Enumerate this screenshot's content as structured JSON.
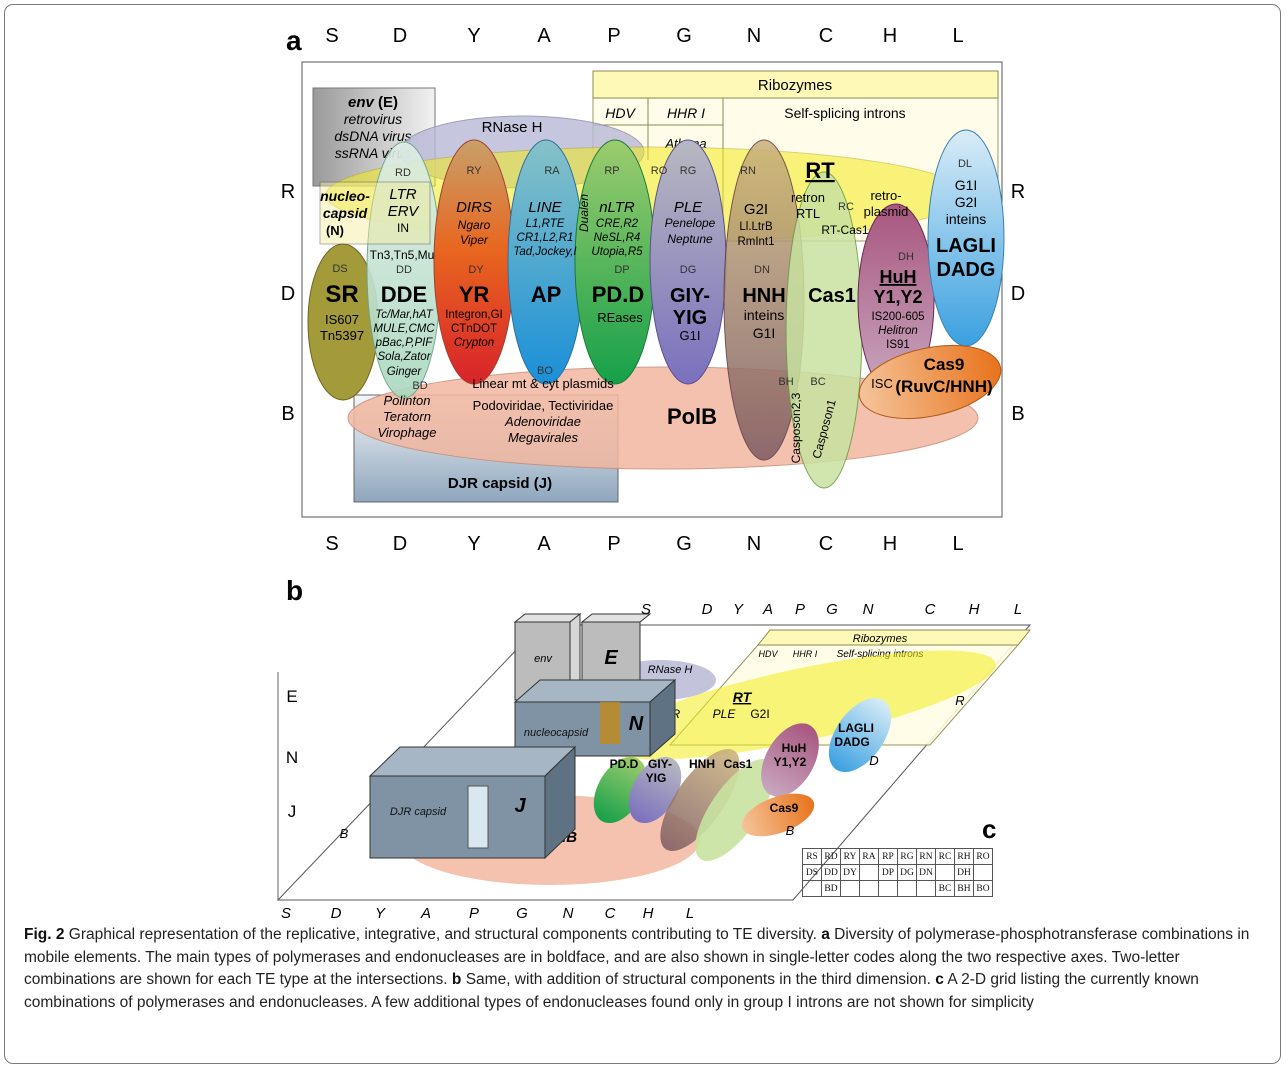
{
  "panel_a": {
    "label": "a",
    "col_letters": [
      "S",
      "D",
      "Y",
      "A",
      "P",
      "G",
      "N",
      "C",
      "H",
      "L"
    ],
    "row_letters": [
      "R",
      "D",
      "B"
    ],
    "ribozymes": "Ribozymes",
    "hdv": "HDV",
    "hhr": "HHR I",
    "self_splicing": "Self-splicing introns",
    "athena": "Athena",
    "env_title": "env",
    "env_code": " (E)",
    "env_l1": "retrovirus",
    "env_l2": "dsDNA virus",
    "env_l3": "ssRNA virus",
    "rnaseh": "RNase H",
    "nucleo_l1": "nucleo-",
    "nucleo_l2": "capsid",
    "nucleo_code": "(N)",
    "rt": "RT",
    "retron": "retron",
    "rtl": "RTL",
    "retroplasmid_1": "retro-",
    "retroplasmid_2": "plasmid",
    "rt_cas1": "RT-Cas1",
    "codes": {
      "RD": "RD",
      "RY": "RY",
      "RA": "RA",
      "RP": "RP",
      "RO": "RO",
      "RG": "RG",
      "RN": "RN",
      "RC": "RC",
      "DL": "DL",
      "DS": "DS",
      "DD": "DD",
      "DY": "DY",
      "DP": "DP",
      "DG": "DG",
      "DN": "DN",
      "DH": "DH",
      "BO": "BO",
      "BD": "BD",
      "BH": "BH",
      "BC": "BC"
    },
    "ltr": "LTR",
    "erv": "ERV",
    "in": "IN",
    "dirs": "DIRS",
    "ngaro": "Ngaro",
    "viper": "Viper",
    "line": "LINE",
    "line_1": "L1,RTE",
    "line_2": "CR1,L2,R1",
    "line_3": "Tad,Jockey,I",
    "dualen": "Dualen",
    "nltr": "nLTR",
    "nltr_1": "CRE,R2",
    "nltr_2": "NeSL,R4",
    "nltr_3": "Utopia,R5",
    "ple": "PLE",
    "penelope": "Penelope",
    "neptune": "Neptune",
    "g2i": "G2I",
    "g2i_1": "Ll.LtrB",
    "g2i_2": "RmInt1",
    "g1i_l": "G1I",
    "g2i_l": "G2I",
    "inteins_l": "inteins",
    "lagli": "LAGLI",
    "dadg": "DADG",
    "sr": "SR",
    "sr_1": "IS607",
    "sr_2": "Tn5397",
    "tn": "Tn3,Tn5,Mu",
    "dde": "DDE",
    "dde_1": "Tc/Mar,hAT",
    "dde_2": "MULE,CMC",
    "dde_3": "pBac,P,PIF",
    "dde_4": "Sola,Zator",
    "dde_5": "Ginger",
    "yr": "YR",
    "yr_1": "Integron,GI",
    "yr_2": "CTnDOT",
    "yr_3": "Crypton",
    "ap": "AP",
    "pdd": "PD.D",
    "reases": "REases",
    "giy": "GIY-",
    "yig": "YIG",
    "g1i_g": "G1I",
    "hnh": "HNH",
    "hnh_inteins": "inteins",
    "hnh_g1i": "G1I",
    "cas1": "Cas1",
    "huh": "HuH",
    "y1y2": "Y1,Y2",
    "huh_1": "IS200-605",
    "huh_2": "Helitron",
    "huh_3": "IS91",
    "cas9": "Cas9",
    "ruvc": "(RuvC/HNH)",
    "isc": "ISC",
    "casposon23": "Casposon2,3",
    "casposon1": "Casposon1",
    "linear": "Linear mt & cyt plasmids",
    "podo": "Podoviridae, Tectiviridae",
    "adeno": "Adenoviridae",
    "megavirales": "Megavirales",
    "polinton": "Polinton",
    "teratorn": "Teratorn",
    "virophage": "Virophage",
    "polb": "PolB",
    "djr": "DJR capsid (J)"
  },
  "panel_b": {
    "label": "b",
    "col_letters": [
      "S",
      "D",
      "Y",
      "A",
      "P",
      "G",
      "N",
      "C",
      "H",
      "L"
    ],
    "z_letters": [
      "E",
      "N",
      "J"
    ],
    "env": "env",
    "e": "E",
    "nucleocapsid": "nucleocapsid",
    "n": "N",
    "djr": "DJR capsid",
    "j": "J",
    "ribozymes": "Ribozymes",
    "hdv": "HDV",
    "hhr": "HHR I",
    "self": "Self-splicing introns",
    "rnaseh": "RNase H",
    "rt": "RT",
    "ple": "PLE",
    "g2i": "G2I",
    "nltr": "nLTR",
    "pdd": "PD.D",
    "giy": "GIY-",
    "yig": "YIG",
    "hnh": "HNH",
    "cas1": "Cas1",
    "huh": "HuH",
    "y1y2": "Y1,Y2",
    "lagli": "LAGLI",
    "dadg": "DADG",
    "cas9": "Cas9",
    "polb": "PolB",
    "r": "R",
    "d": "D",
    "b": "B"
  },
  "panel_c": {
    "label": "c",
    "rows": [
      [
        "RS",
        "RD",
        "RY",
        "RA",
        "RP",
        "RG",
        "RN",
        "RC",
        "RH",
        "RO"
      ],
      [
        "DS",
        "DD",
        "DY",
        "",
        "DP",
        "DG",
        "DN",
        "",
        "DH",
        ""
      ],
      [
        "",
        "BD",
        "",
        "",
        "",
        "",
        "",
        "BC",
        "BH",
        "BO"
      ]
    ]
  },
  "caption": {
    "fig": "Fig. 2",
    "text_1": " Graphical representation of the replicative, integrative, and structural components contributing to TE diversity. ",
    "a": "a",
    "text_2": " Diversity of polymerase-phosphotransferase combinations in mobile elements. The main types of polymerases and endonucleases are in boldface, and are also shown in single-letter codes along the two respective axes. Two-letter combinations are shown for each TE type at the intersections. ",
    "b": "b",
    "text_3": " Same, with addition of structural components in the third dimension. ",
    "c": "c",
    "text_4": " A 2-D grid listing the currently known combinations of polymerases and endonucleases. A few additional types of endonucleases found only in group I introns are not shown for simplicity"
  }
}
